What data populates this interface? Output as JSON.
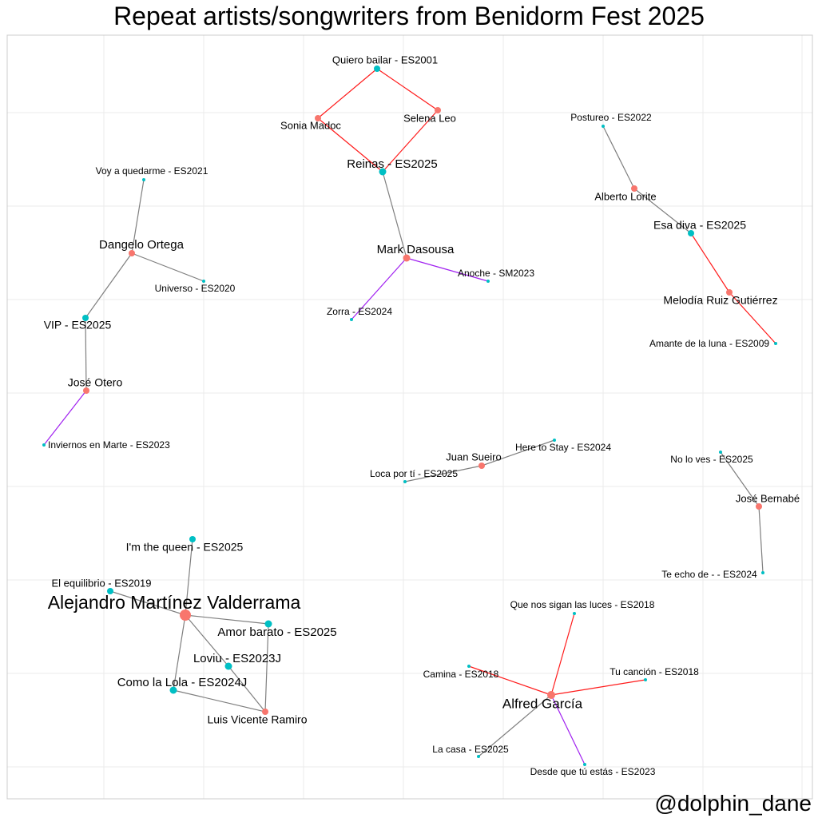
{
  "title": "Repeat artists/songwriters from Benidorm Fest 2025",
  "credit": "@dolphin_dane",
  "colors": {
    "person": "#F8766D",
    "song": "#00BFC4",
    "edge_grey": "#7f7f7f",
    "edge_red": "#ff1a1a",
    "edge_purple": "#a020f0",
    "grid": "#ebebeb",
    "panel_border": "#cccccc"
  },
  "nodes": [
    {
      "id": "quiero",
      "label": "Quiero bailar - ES2001",
      "type": "song"
    },
    {
      "id": "sonia",
      "label": "Sonia Madoc",
      "type": "person"
    },
    {
      "id": "selena",
      "label": "Selena Leo",
      "type": "person"
    },
    {
      "id": "reinas",
      "label": "Reinas - ES2025",
      "type": "song"
    },
    {
      "id": "mark",
      "label": "Mark Dasousa",
      "type": "person"
    },
    {
      "id": "anoche",
      "label": "Anoche - SM2023",
      "type": "song"
    },
    {
      "id": "zorra",
      "label": "Zorra - ES2024",
      "type": "song"
    },
    {
      "id": "postureo",
      "label": "Postureo - ES2022",
      "type": "song"
    },
    {
      "id": "alberto",
      "label": "Alberto Lorite",
      "type": "person"
    },
    {
      "id": "esadiva",
      "label": "Esa diva - ES2025",
      "type": "song"
    },
    {
      "id": "melodia",
      "label": "Melodía Ruiz Gutiérrez",
      "type": "person"
    },
    {
      "id": "amante",
      "label": "Amante de la luna - ES2009",
      "type": "song"
    },
    {
      "id": "voy",
      "label": "Voy a quedarme - ES2021",
      "type": "song"
    },
    {
      "id": "dangelo",
      "label": "Dangelo Ortega",
      "type": "person"
    },
    {
      "id": "universo",
      "label": "Universo - ES2020",
      "type": "song"
    },
    {
      "id": "vip",
      "label": "VIP - ES2025",
      "type": "song"
    },
    {
      "id": "jose_otero",
      "label": "José Otero",
      "type": "person"
    },
    {
      "id": "inviernos",
      "label": "Inviernos en Marte - ES2023",
      "type": "song"
    },
    {
      "id": "heretostay",
      "label": "Here to Stay - ES2024",
      "type": "song"
    },
    {
      "id": "juan",
      "label": "Juan Sueiro",
      "type": "person"
    },
    {
      "id": "loca",
      "label": "Loca por tí - ES2025",
      "type": "song"
    },
    {
      "id": "noloves",
      "label": "No lo ves - ES2025",
      "type": "song"
    },
    {
      "id": "bernabe",
      "label": "José Bernabé",
      "type": "person"
    },
    {
      "id": "teecho",
      "label": "Te echo de - - ES2024",
      "type": "song"
    },
    {
      "id": "queen",
      "label": "I'm the queen - ES2025",
      "type": "song"
    },
    {
      "id": "equilibrio",
      "label": "El equilibrio - ES2019",
      "type": "song"
    },
    {
      "id": "alejandro",
      "label": "Alejandro Martínez Valderrama",
      "type": "person"
    },
    {
      "id": "amorbarato",
      "label": "Amor barato - ES2025",
      "type": "song"
    },
    {
      "id": "loviu",
      "label": "Loviu - ES2023J",
      "type": "song"
    },
    {
      "id": "lola",
      "label": "Como la Lola - ES2024J",
      "type": "song"
    },
    {
      "id": "luis",
      "label": "Luis Vicente Ramiro",
      "type": "person"
    },
    {
      "id": "quenos",
      "label": "Que nos sigan las luces - ES2018",
      "type": "song"
    },
    {
      "id": "camina",
      "label": "Camina - ES2018",
      "type": "song"
    },
    {
      "id": "tucancion",
      "label": "Tu canción - ES2018",
      "type": "song"
    },
    {
      "id": "alfred",
      "label": "Alfred García",
      "type": "person"
    },
    {
      "id": "lacasa",
      "label": "La casa - ES2025",
      "type": "song"
    },
    {
      "id": "desde",
      "label": "Desde que tú estás - ES2023",
      "type": "song"
    }
  ],
  "edges": [
    {
      "from": "quiero",
      "to": "sonia",
      "color": "red"
    },
    {
      "from": "quiero",
      "to": "selena",
      "color": "red"
    },
    {
      "from": "sonia",
      "to": "reinas",
      "color": "red"
    },
    {
      "from": "selena",
      "to": "reinas",
      "color": "red"
    },
    {
      "from": "reinas",
      "to": "mark",
      "color": "grey"
    },
    {
      "from": "mark",
      "to": "anoche",
      "color": "purple"
    },
    {
      "from": "mark",
      "to": "zorra",
      "color": "purple"
    },
    {
      "from": "postureo",
      "to": "alberto",
      "color": "grey"
    },
    {
      "from": "alberto",
      "to": "esadiva",
      "color": "grey"
    },
    {
      "from": "esadiva",
      "to": "melodia",
      "color": "red"
    },
    {
      "from": "melodia",
      "to": "amante",
      "color": "red"
    },
    {
      "from": "voy",
      "to": "dangelo",
      "color": "grey"
    },
    {
      "from": "dangelo",
      "to": "universo",
      "color": "grey"
    },
    {
      "from": "dangelo",
      "to": "vip",
      "color": "grey"
    },
    {
      "from": "vip",
      "to": "jose_otero",
      "color": "grey"
    },
    {
      "from": "jose_otero",
      "to": "inviernos",
      "color": "purple"
    },
    {
      "from": "heretostay",
      "to": "juan",
      "color": "grey"
    },
    {
      "from": "juan",
      "to": "loca",
      "color": "grey"
    },
    {
      "from": "noloves",
      "to": "bernabe",
      "color": "grey"
    },
    {
      "from": "bernabe",
      "to": "teecho",
      "color": "grey"
    },
    {
      "from": "queen",
      "to": "alejandro",
      "color": "grey"
    },
    {
      "from": "equilibrio",
      "to": "alejandro",
      "color": "grey"
    },
    {
      "from": "alejandro",
      "to": "amorbarato",
      "color": "grey"
    },
    {
      "from": "alejandro",
      "to": "loviu",
      "color": "grey"
    },
    {
      "from": "alejandro",
      "to": "lola",
      "color": "grey"
    },
    {
      "from": "amorbarato",
      "to": "luis",
      "color": "grey"
    },
    {
      "from": "loviu",
      "to": "luis",
      "color": "grey"
    },
    {
      "from": "lola",
      "to": "luis",
      "color": "grey"
    },
    {
      "from": "quenos",
      "to": "alfred",
      "color": "red"
    },
    {
      "from": "camina",
      "to": "alfred",
      "color": "red"
    },
    {
      "from": "tucancion",
      "to": "alfred",
      "color": "red"
    },
    {
      "from": "alfred",
      "to": "lacasa",
      "color": "grey"
    },
    {
      "from": "alfred",
      "to": "desde",
      "color": "purple"
    }
  ]
}
